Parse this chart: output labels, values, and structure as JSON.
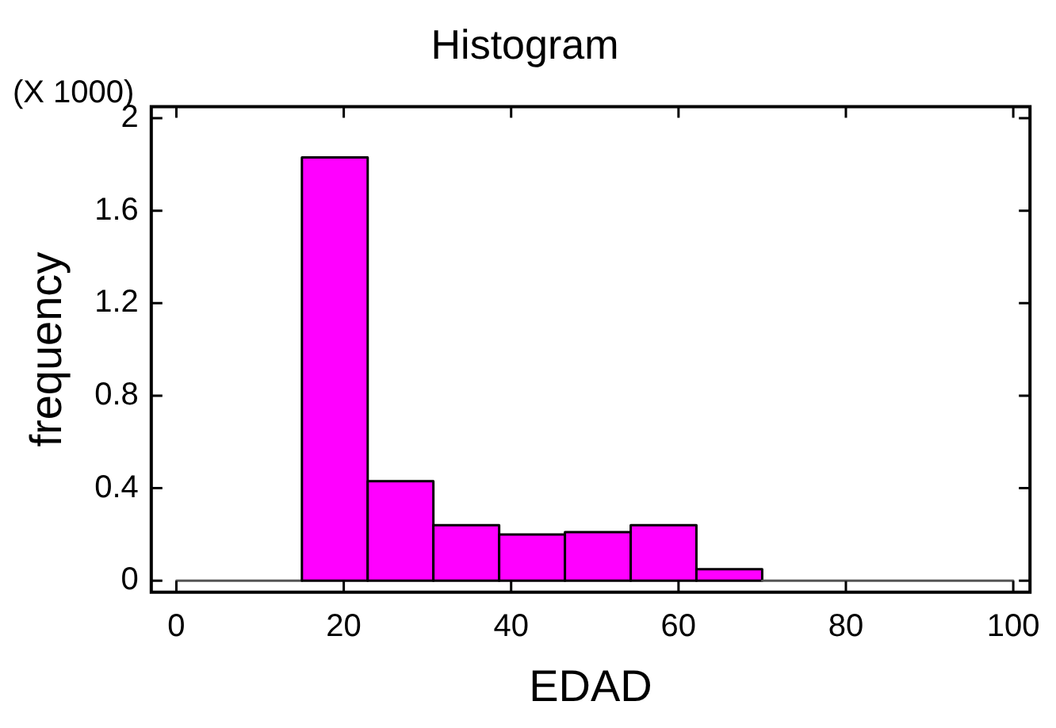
{
  "chart_data": {
    "type": "histogram",
    "title": "Histogram",
    "xlabel": "EDAD",
    "ylabel": "frequency",
    "annotations": [
      "(X 1000)"
    ],
    "bins": [
      0,
      15,
      22.86,
      30.71,
      38.57,
      46.43,
      54.29,
      62.14,
      70,
      100
    ],
    "values": [
      0,
      1.83,
      0.43,
      0.24,
      0.2,
      0.21,
      0.24,
      0.05,
      0
    ],
    "colors": [
      "#555555",
      "#ff00ff",
      "#ff00ff",
      "#ff00ff",
      "#ff00ff",
      "#ff00ff",
      "#ff00ff",
      "#ff00ff",
      "#555555"
    ],
    "xlim": [
      -3,
      102
    ],
    "xticks": [
      0,
      20,
      40,
      60,
      80,
      100
    ],
    "ylim": [
      -0.05,
      2.05
    ],
    "yticks": [
      0,
      0.4,
      0.8,
      1.2,
      1.6,
      2
    ],
    "grid": false,
    "legend": false
  }
}
